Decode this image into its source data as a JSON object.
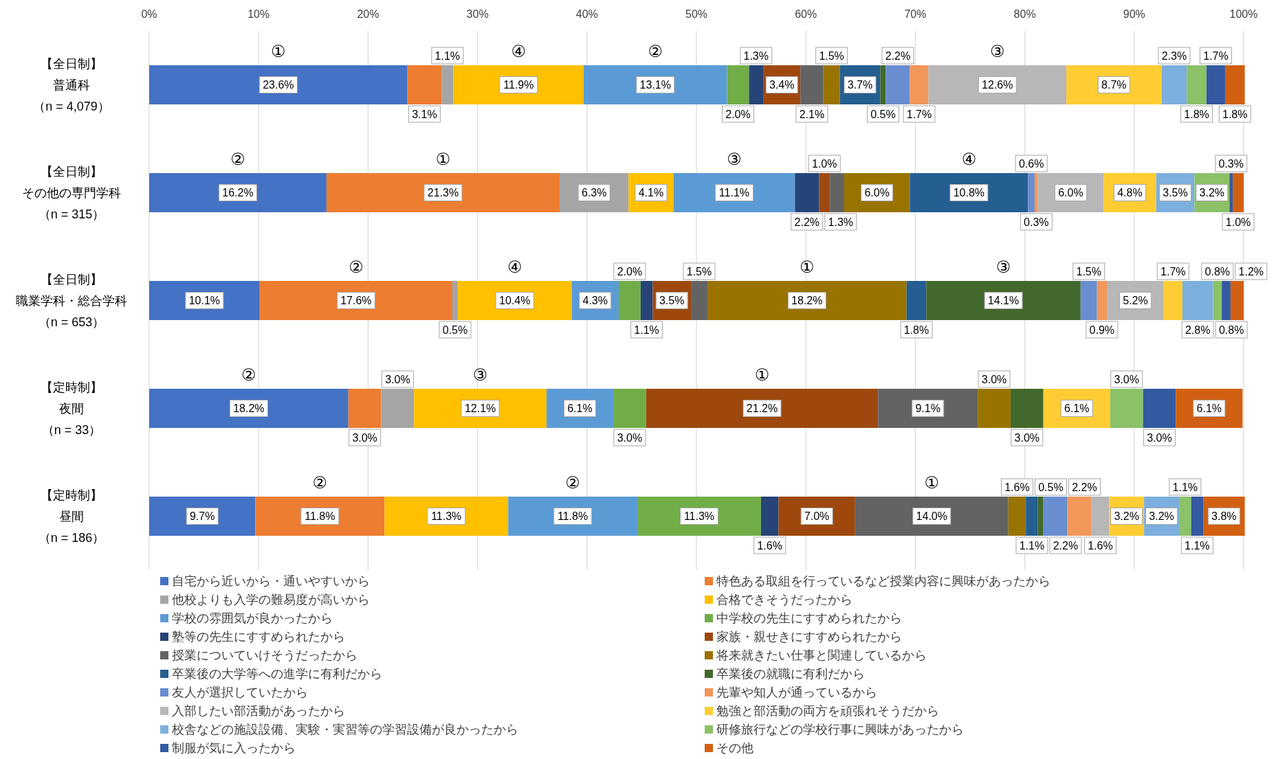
{
  "chart_data": {
    "type": "bar",
    "orientation": "horizontal",
    "stacked": true,
    "legend": "bottom",
    "grid": "x",
    "categories": [
      "【全日制】普通科（n = 4,079）",
      "【全日制】その他の専門学科（n = 315）",
      "【全日制】職業学科・総合学科（n = 653）",
      "【定時制】夜間（n = 33）",
      "【定時制】昼間（n = 186）"
    ],
    "xlim": [
      0,
      100
    ],
    "xticks": [
      {
        "value": 0,
        "label": "0%"
      },
      {
        "value": 10,
        "label": "10%"
      },
      {
        "value": 20,
        "label": "20%"
      },
      {
        "value": 30,
        "label": "30%"
      },
      {
        "value": 40,
        "label": "40%"
      },
      {
        "value": 50,
        "label": "50%"
      },
      {
        "value": 60,
        "label": "60%"
      },
      {
        "value": 70,
        "label": "70%"
      },
      {
        "value": 80,
        "label": "80%"
      },
      {
        "value": 90,
        "label": "90%"
      },
      {
        "value": 100,
        "label": "100%"
      }
    ],
    "series": [
      {
        "name": "自宅から近いから・通いやすいから",
        "color": "#4472c4",
        "values": [
          23.6,
          16.2,
          10.1,
          18.2,
          9.7
        ],
        "value_labels": [
          "23.6%",
          "16.2%",
          "10.1%",
          "18.2%",
          "9.7%"
        ]
      },
      {
        "name": "特色ある取組を行っているなど授業内容に興味があったから",
        "color": "#ed7d31",
        "values": [
          3.1,
          21.3,
          17.6,
          3.0,
          11.8
        ],
        "value_labels": [
          "3.1%",
          "21.3%",
          "17.6%",
          "3.0%",
          "11.8%"
        ]
      },
      {
        "name": "他校よりも入学の難易度が高いから",
        "color": "#a5a5a5",
        "values": [
          1.1,
          6.3,
          0.5,
          3.0,
          null
        ],
        "value_labels": [
          "1.1%",
          "6.3%",
          "0.5%",
          "3.0%",
          null
        ]
      },
      {
        "name": "合格できそうだったから",
        "color": "#ffc000",
        "values": [
          11.9,
          4.1,
          10.4,
          12.1,
          11.3
        ],
        "value_labels": [
          "11.9%",
          "4.1%",
          "10.4%",
          "12.1%",
          "11.3%"
        ]
      },
      {
        "name": "学校の雰囲気が良かったから",
        "color": "#5b9bd5",
        "values": [
          13.1,
          11.1,
          4.3,
          6.1,
          11.8
        ],
        "value_labels": [
          "13.1%",
          "11.1%",
          "4.3%",
          "6.1%",
          "11.8%"
        ]
      },
      {
        "name": "中学校の先生にすすめられたから",
        "color": "#70ad47",
        "values": [
          2.0,
          null,
          2.0,
          3.0,
          11.3
        ],
        "value_labels": [
          "2.0%",
          null,
          "2.0%",
          "3.0%",
          "11.3%"
        ]
      },
      {
        "name": "塾等の先生にすすめられたから",
        "color": "#264478",
        "values": [
          1.3,
          2.2,
          1.1,
          null,
          1.6
        ],
        "value_labels": [
          "1.3%",
          "2.2%",
          "1.1%",
          null,
          "1.6%"
        ]
      },
      {
        "name": "家族・親せきにすすめられたから",
        "color": "#9e480e",
        "values": [
          3.4,
          1.0,
          3.5,
          21.2,
          7.0
        ],
        "value_labels": [
          "3.4%",
          "1.0%",
          "3.5%",
          "21.2%",
          "7.0%"
        ]
      },
      {
        "name": "授業についていけそうだったから",
        "color": "#636363",
        "values": [
          2.1,
          1.3,
          1.5,
          9.1,
          14.0
        ],
        "value_labels": [
          "2.1%",
          "1.3%",
          "1.5%",
          "9.1%",
          "14.0%"
        ]
      },
      {
        "name": "将来就きたい仕事と関連しているから",
        "color": "#997300",
        "values": [
          1.5,
          6.0,
          18.2,
          3.0,
          1.6
        ],
        "value_labels": [
          "1.5%",
          "6.0%",
          "18.2%",
          "3.0%",
          "1.6%"
        ]
      },
      {
        "name": "卒業後の大学等への進学に有利だから",
        "color": "#255e91",
        "values": [
          3.7,
          10.8,
          1.8,
          null,
          1.1
        ],
        "value_labels": [
          "3.7%",
          "10.8%",
          "1.8%",
          null,
          "1.1%"
        ]
      },
      {
        "name": "卒業後の就職に有利だから",
        "color": "#43682b",
        "values": [
          0.5,
          null,
          14.1,
          3.0,
          0.5
        ],
        "value_labels": [
          "0.5%",
          null,
          "14.1%",
          "3.0%",
          "0.5%"
        ]
      },
      {
        "name": "友人が選択していたから",
        "color": "#698ed0",
        "values": [
          2.2,
          0.6,
          1.5,
          null,
          2.2
        ],
        "value_labels": [
          "2.2%",
          "0.6%",
          "1.5%",
          null,
          "2.2%"
        ]
      },
      {
        "name": "先輩や知人が通っているから",
        "color": "#f1975a",
        "values": [
          1.7,
          0.3,
          0.9,
          null,
          2.2
        ],
        "value_labels": [
          "1.7%",
          "0.3%",
          "0.9%",
          null,
          "2.2%"
        ]
      },
      {
        "name": "入部したい部活動があったから",
        "color": "#b7b7b7",
        "values": [
          12.6,
          6.0,
          5.2,
          null,
          1.6
        ],
        "value_labels": [
          "12.6%",
          "6.0%",
          "5.2%",
          null,
          "1.6%"
        ]
      },
      {
        "name": "勉強と部活動の両方を頑張れそうだから",
        "color": "#ffcd33",
        "values": [
          8.7,
          4.8,
          1.7,
          6.1,
          3.2
        ],
        "value_labels": [
          "8.7%",
          "4.8%",
          "1.7%",
          "6.1%",
          "3.2%"
        ]
      },
      {
        "name": "校舎などの施設設備、実験・実習等の学習設備が良かったから",
        "color": "#7cafdd",
        "values": [
          2.3,
          3.5,
          2.8,
          null,
          3.2
        ],
        "value_labels": [
          "2.3%",
          "3.5%",
          "2.8%",
          null,
          "3.2%"
        ]
      },
      {
        "name": "研修旅行などの学校行事に興味があったから",
        "color": "#8cc168",
        "values": [
          1.8,
          3.2,
          0.8,
          3.0,
          1.1
        ],
        "value_labels": [
          "1.8%",
          "3.2%",
          "0.8%",
          "3.0%",
          "1.1%"
        ]
      },
      {
        "name": "制服が気に入ったから",
        "color": "#335aa1",
        "values": [
          1.7,
          0.3,
          0.8,
          3.0,
          1.1
        ],
        "value_labels": [
          "1.7%",
          "0.3%",
          "0.8%",
          "3.0%",
          "1.1%"
        ]
      },
      {
        "name": "その他",
        "color": "#d26012",
        "values": [
          1.8,
          1.0,
          1.2,
          6.1,
          3.8
        ],
        "value_labels": [
          "1.8%",
          "1.0%",
          "1.2%",
          "6.1%",
          "3.8%"
        ]
      }
    ],
    "annotations": [
      "①",
      "④",
      "②",
      "③",
      "②",
      "①",
      "③",
      "④",
      "②",
      "④",
      "①",
      "③",
      "②",
      "③",
      "①",
      "②",
      "②",
      "①"
    ]
  }
}
